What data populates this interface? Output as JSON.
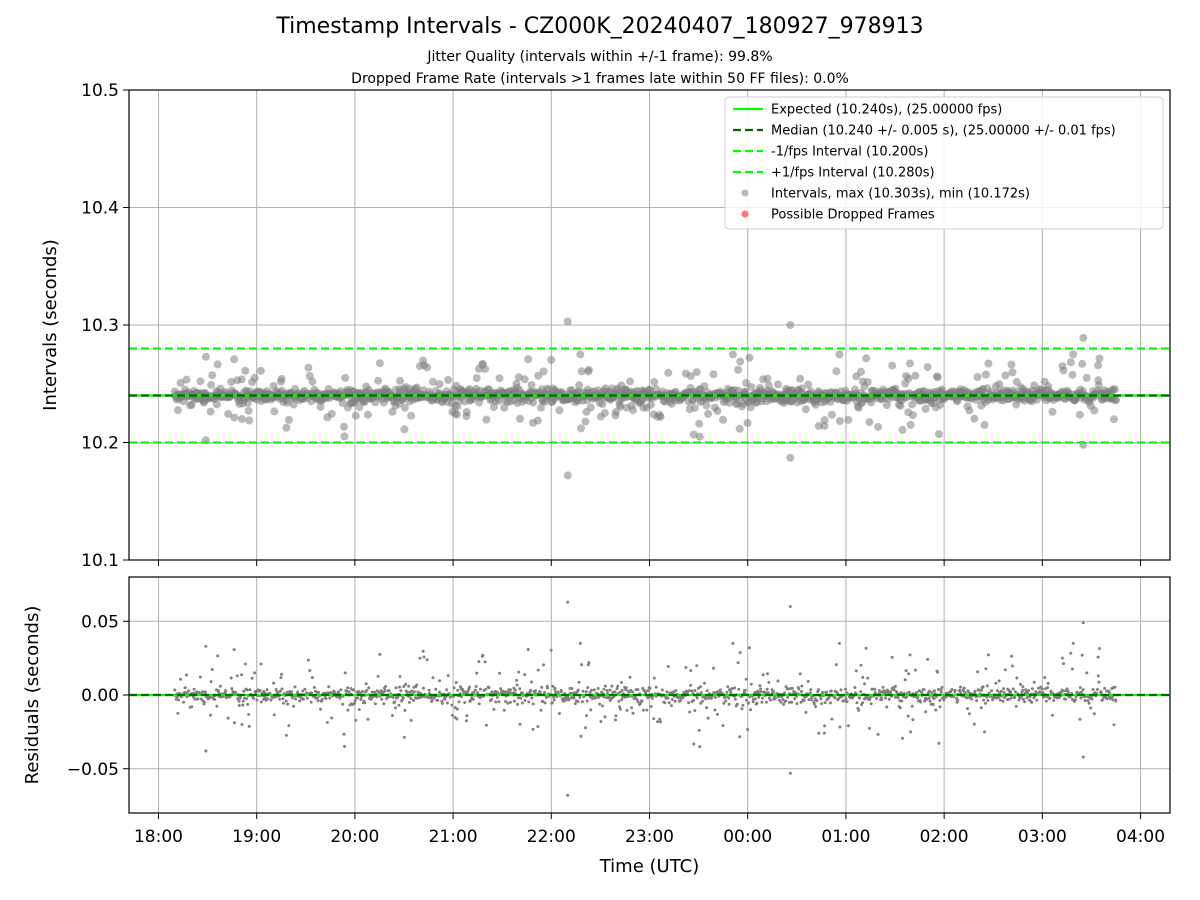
{
  "figure": {
    "title": "Timestamp Intervals - CZ000K_20240407_180927_978913",
    "subtitle_1": "Jitter Quality (intervals within +/-1 frame): 99.8%",
    "subtitle_2": "Dropped Frame Rate (intervals >1 frames late within 50 FF files): 0.0%"
  },
  "colors": {
    "expected": "#00ff00",
    "median": "#006400",
    "fps_bounds": "#00ff00",
    "intervals": "#808080",
    "dropped": "#ff0000",
    "grid": "#b0b0b0"
  },
  "chart_data": [
    {
      "type": "scatter",
      "ylabel": "Intervals (seconds)",
      "xlim": [
        "17:42",
        "04:18"
      ],
      "ylim": [
        10.1,
        10.5
      ],
      "y_ticks": [
        "10.1",
        "10.2",
        "10.3",
        "10.4",
        "10.5"
      ],
      "grid": true,
      "legend_position": "upper-right",
      "reference_lines": [
        {
          "name": "Expected (10.240s), (25.00000 fps)",
          "y": 10.24,
          "style": "solid",
          "color": "#00ff00"
        },
        {
          "name": "Median (10.240 +/- 0.005 s), (25.00000 +/- 0.01 fps)",
          "y": 10.24,
          "style": "dashed",
          "color": "#006400"
        },
        {
          "name": "-1/fps Interval (10.200s)",
          "y": 10.2,
          "style": "dashed",
          "color": "#00ff00"
        },
        {
          "name": "+1/fps Interval (10.280s)",
          "y": 10.28,
          "style": "dashed",
          "color": "#00ff00"
        }
      ],
      "series": [
        {
          "name": "Intervals, max (10.303s), min (10.172s)",
          "color": "#808080",
          "x_range": [
            "18:10",
            "03:45"
          ],
          "center": 10.24,
          "count": 3357,
          "notable_points": [
            {
              "x": "22:10",
              "y": 10.303
            },
            {
              "x": "22:10",
              "y": 10.172
            },
            {
              "x": "00:26",
              "y": 10.3
            },
            {
              "x": "00:26",
              "y": 10.187
            },
            {
              "x": "03:25",
              "y": 10.289
            },
            {
              "x": "03:25",
              "y": 10.198
            },
            {
              "x": "18:29",
              "y": 10.273
            },
            {
              "x": "18:29",
              "y": 10.202
            }
          ]
        },
        {
          "name": "Possible Dropped Frames",
          "color": "#ff0000",
          "points": []
        }
      ]
    },
    {
      "type": "scatter",
      "xlabel": "Time (UTC)",
      "ylabel": "Residuals (seconds)",
      "xlim": [
        "17:42",
        "04:18"
      ],
      "ylim": [
        -0.08,
        0.08
      ],
      "y_ticks": [
        "−0.05",
        "0.00",
        "0.05"
      ],
      "x_ticks": [
        "18:00",
        "19:00",
        "20:00",
        "21:00",
        "22:00",
        "23:00",
        "00:00",
        "01:00",
        "02:00",
        "03:00",
        "04:00"
      ],
      "grid": true,
      "reference_lines": [
        {
          "y": 0.0,
          "style": "solid",
          "color": "#00ff00"
        },
        {
          "y": 0.0,
          "style": "dashed",
          "color": "#006400"
        }
      ],
      "series": [
        {
          "name": "Residuals",
          "color": "#808080",
          "x_range": [
            "18:10",
            "03:45"
          ],
          "center": 0.0,
          "count": 3357,
          "notable_points": [
            {
              "x": "22:10",
              "y": 0.063
            },
            {
              "x": "22:10",
              "y": -0.068
            },
            {
              "x": "00:26",
              "y": 0.06
            },
            {
              "x": "00:26",
              "y": -0.053
            },
            {
              "x": "03:25",
              "y": 0.049
            },
            {
              "x": "03:25",
              "y": -0.042
            },
            {
              "x": "18:29",
              "y": 0.033
            },
            {
              "x": "18:29",
              "y": -0.038
            }
          ]
        }
      ]
    }
  ]
}
